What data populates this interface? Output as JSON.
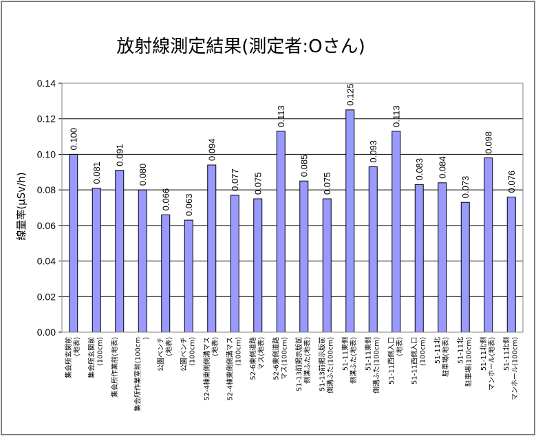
{
  "chart_data": {
    "type": "bar",
    "title": "放射線測定結果(測定者:Oさん)",
    "ylabel": "線量率(μSv/h)",
    "xlabel": "",
    "ylim": [
      0,
      0.14
    ],
    "yticks": [
      "0.00",
      "0.02",
      "0.04",
      "0.06",
      "0.08",
      "0.10",
      "0.12",
      "0.14"
    ],
    "grid": true,
    "legend": "none",
    "bar_color": "#9999ff",
    "categories": [
      [
        "集会所玄関前",
        "(地表)"
      ],
      [
        "集会所玄関前",
        "(100cm)"
      ],
      [
        "集会所作業前(地表)"
      ],
      [
        "集会所作業室前(100cm",
        ")"
      ],
      [
        "公園ベンチ",
        "(地表)"
      ],
      [
        "公園ベンチ",
        "(100cm)"
      ],
      [
        "52-4棟東側側溝マス",
        "(地表)"
      ],
      [
        "52-4棟東側側溝マス",
        "(100cm)"
      ],
      [
        "52-6東側道路",
        "マス(地表)"
      ],
      [
        "52-6東側道路",
        "マス(100cm)"
      ],
      [
        "51-13前掲示版前",
        "側溝ふた(地表)"
      ],
      [
        "51-13前掲示版前",
        "側溝ふた(100cm)"
      ],
      [
        "51-11東側",
        "側溝ふた(地表)"
      ],
      [
        "51-11東側",
        "側溝ふた(100cm)"
      ],
      [
        "51-11西側入口",
        "(地表)"
      ],
      [
        "51-11西側入口",
        "(100cm)"
      ],
      [
        "51-11北",
        "駐車場(地表)"
      ],
      [
        "51-11北",
        "駐車場(100cm)"
      ],
      [
        "51-11北側",
        "マンホール(地表)"
      ],
      [
        "51-11北側",
        "マンホール(100cm)"
      ]
    ],
    "values": [
      0.1,
      0.081,
      0.091,
      0.08,
      0.066,
      0.063,
      0.094,
      0.077,
      0.075,
      0.113,
      0.085,
      0.075,
      0.125,
      0.093,
      0.113,
      0.083,
      0.084,
      0.073,
      0.098,
      0.076
    ],
    "value_labels": [
      "0.100",
      "0.081",
      "0.091",
      "0.080",
      "0.066",
      "0.063",
      "0.094",
      "0.077",
      "0.075",
      "0.113",
      "0.085",
      "0.075",
      "0.125",
      "0.093",
      "0.113",
      "0.083",
      "0.084",
      "0.073",
      "0.098",
      "0.076"
    ]
  }
}
